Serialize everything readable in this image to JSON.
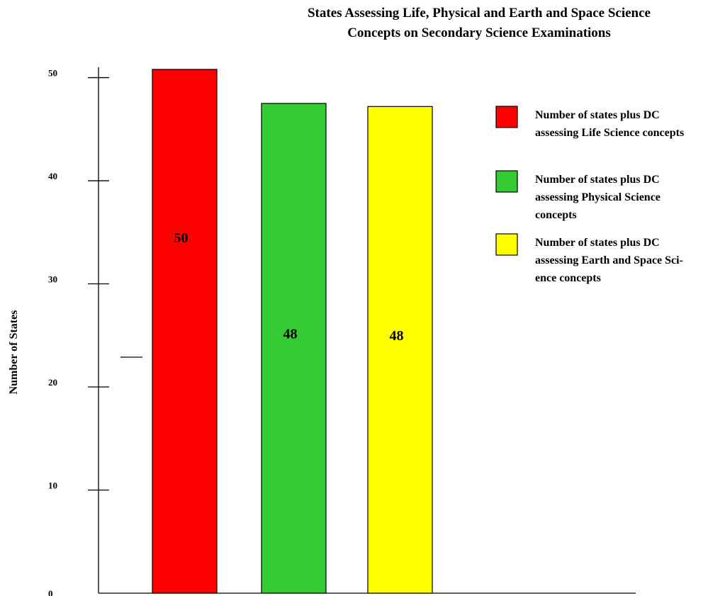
{
  "chart_data": {
    "type": "bar",
    "title": [
      "States Assessing Life, Physical and Earth and Space  Science",
      "Concepts on Secondary Science Examinations"
    ],
    "xlabel": "",
    "ylabel": "Number of States",
    "ylim": [
      0,
      51
    ],
    "y_ticks": [
      0,
      10,
      20,
      30,
      40,
      50
    ],
    "grid": false,
    "legend_position": "right",
    "categories": [
      "",
      "",
      ""
    ],
    "series": [
      {
        "name": "Number of states plus DC assessing Life Science concepts",
        "legend_lines": [
          "Number of states plus DC",
          "assessing Life Science concepts"
        ],
        "value": 50,
        "bar_top_value": 50.8,
        "data_label": "50",
        "color": "#ff0000"
      },
      {
        "name": "Number of states plus DC assessing Physical Science concepts",
        "legend_lines": [
          "Number of states plus DC",
          "assessing Physical Science",
          "concepts"
        ],
        "value": 48,
        "bar_top_value": 47.5,
        "data_label": "48",
        "color": "#33cc33"
      },
      {
        "name": "Number of states plus DC assessing Earth and Space Science concepts",
        "legend_lines": [
          "Number of states plus DC",
          "assessing Earth and Space Sci-",
          "ence concepts"
        ],
        "value": 48,
        "bar_top_value": 47.2,
        "data_label": "48",
        "color": "#ffff00"
      }
    ]
  }
}
